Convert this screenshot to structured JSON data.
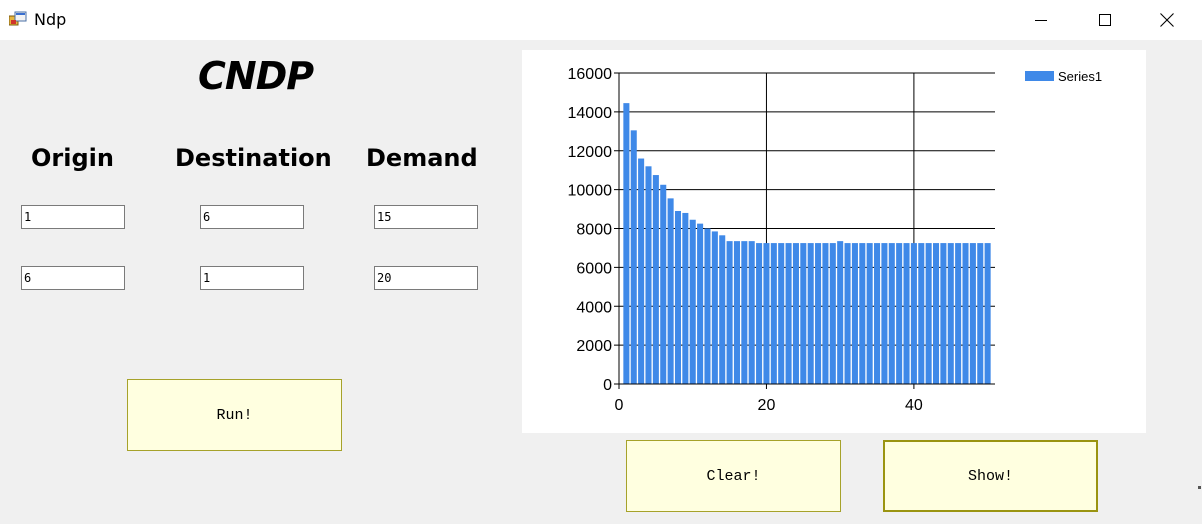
{
  "window": {
    "title": "Ndp",
    "app_icon": "winforms-app-icon",
    "controls": [
      "minimize-icon",
      "maximize-icon",
      "close-icon"
    ]
  },
  "form": {
    "title": "CNDP",
    "headers": {
      "origin": "Origin",
      "destination": "Destination",
      "demand": "Demand"
    },
    "rows": [
      {
        "origin": "1",
        "destination": "6",
        "demand": "15"
      },
      {
        "origin": "6",
        "destination": "1",
        "demand": "20"
      }
    ]
  },
  "buttons": {
    "run": "Run!",
    "clear": "Clear!",
    "show": "Show!"
  },
  "colors": {
    "bar": "#3f89e8",
    "button_bg": "#ffffe0",
    "button_border": "#a6a22a"
  },
  "chart_data": {
    "type": "bar",
    "title": "",
    "xlabel": "",
    "ylabel": "",
    "legend_position": "top-right",
    "grid": true,
    "xlim": [
      0,
      51
    ],
    "ylim": [
      0,
      16000
    ],
    "x_ticks": [
      0,
      20,
      40
    ],
    "y_ticks": [
      0,
      2000,
      4000,
      6000,
      8000,
      10000,
      12000,
      14000,
      16000
    ],
    "series": [
      {
        "name": "Series1",
        "x": [
          1,
          2,
          3,
          4,
          5,
          6,
          7,
          8,
          9,
          10,
          11,
          12,
          13,
          14,
          15,
          16,
          17,
          18,
          19,
          20,
          21,
          22,
          23,
          24,
          25,
          26,
          27,
          28,
          29,
          30,
          31,
          32,
          33,
          34,
          35,
          36,
          37,
          38,
          39,
          40,
          41,
          42,
          43,
          44,
          45,
          46,
          47,
          48,
          49,
          50
        ],
        "values": [
          14450,
          13050,
          11600,
          11200,
          10750,
          10250,
          9550,
          8900,
          8800,
          8450,
          8250,
          8000,
          7850,
          7650,
          7350,
          7350,
          7350,
          7350,
          7250,
          7250,
          7250,
          7250,
          7250,
          7250,
          7250,
          7250,
          7250,
          7250,
          7250,
          7350,
          7250,
          7250,
          7250,
          7250,
          7250,
          7250,
          7250,
          7250,
          7250,
          7250,
          7250,
          7250,
          7250,
          7250,
          7250,
          7250,
          7250,
          7250,
          7250,
          7250
        ]
      }
    ]
  }
}
